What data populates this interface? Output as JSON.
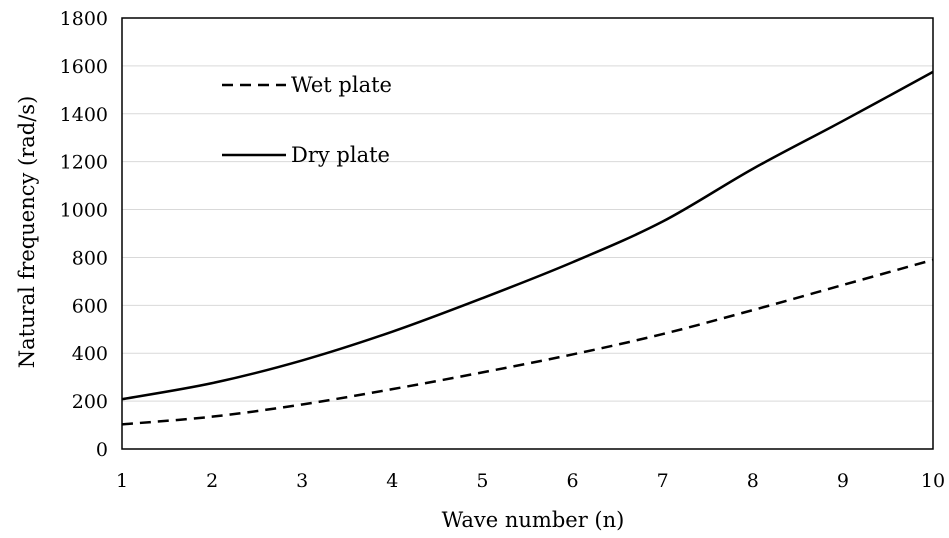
{
  "chart_data": {
    "type": "line",
    "title": "",
    "xlabel": "Wave number (n)",
    "ylabel": "Natural frequency (rad/s)",
    "x": [
      1,
      2,
      3,
      4,
      5,
      6,
      7,
      8,
      9,
      10
    ],
    "xlim": [
      1,
      10
    ],
    "ylim": [
      0,
      1800
    ],
    "x_ticks": [
      "1",
      "2",
      "3",
      "4",
      "5",
      "6",
      "7",
      "8",
      "9",
      "10"
    ],
    "y_ticks": [
      "0",
      "200",
      "400",
      "600",
      "800",
      "1000",
      "1200",
      "1400",
      "1600",
      "1800"
    ],
    "grid": "horizontal",
    "legend_position": "top-left",
    "series": [
      {
        "name": "Wet plate",
        "line_style": "dashed",
        "color": "#000000",
        "values": [
          103,
          135,
          186,
          250,
          320,
          395,
          480,
          580,
          685,
          790
        ]
      },
      {
        "name": "Dry plate",
        "line_style": "solid",
        "color": "#000000",
        "values": [
          208,
          275,
          370,
          490,
          630,
          780,
          950,
          1170,
          1370,
          1575
        ]
      }
    ]
  }
}
